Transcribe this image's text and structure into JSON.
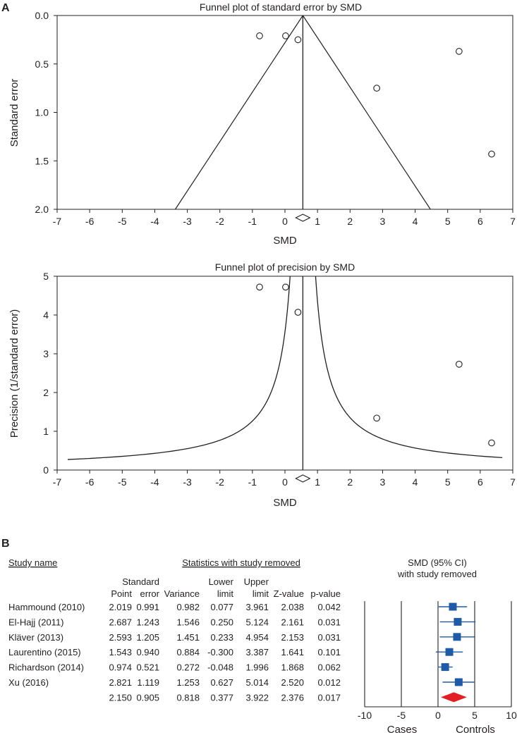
{
  "panel_a_label": "A",
  "panel_b_label": "B",
  "chart_data": [
    {
      "type": "scatter",
      "title": "Funnel plot of standard error by SMD",
      "xlabel": "SMD",
      "ylabel": "Standard error",
      "xlim": [
        -7,
        7
      ],
      "ylim": [
        0,
        2
      ],
      "y_reversed": true,
      "xticks": [
        -7,
        -6,
        -5,
        -4,
        -3,
        -2,
        -1,
        0,
        1,
        2,
        3,
        4,
        5,
        6,
        7
      ],
      "yticks": [
        0.0,
        0.5,
        1.0,
        1.5,
        2.0
      ],
      "ytick_labels": [
        "0.0",
        "0.5",
        "1.0",
        "1.5",
        "2.0"
      ],
      "pooled_estimate": 0.55,
      "points": [
        {
          "x": -0.78,
          "y": 0.21
        },
        {
          "x": 0.02,
          "y": 0.21
        },
        {
          "x": 0.4,
          "y": 0.25
        },
        {
          "x": 5.35,
          "y": 0.37
        },
        {
          "x": 2.82,
          "y": 0.75
        },
        {
          "x": 6.35,
          "y": 1.43
        }
      ]
    },
    {
      "type": "scatter",
      "title": "Funnel plot of precision by SMD",
      "xlabel": "SMD",
      "ylabel": "Precision (1/standard error)",
      "xlim": [
        -7,
        7
      ],
      "ylim": [
        0,
        5
      ],
      "xticks": [
        -7,
        -6,
        -5,
        -4,
        -3,
        -2,
        -1,
        0,
        1,
        2,
        3,
        4,
        5,
        6,
        7
      ],
      "yticks": [
        0,
        1,
        2,
        3,
        4,
        5
      ],
      "pooled_estimate": 0.55,
      "points": [
        {
          "x": -0.78,
          "y": 4.72
        },
        {
          "x": 0.02,
          "y": 4.72
        },
        {
          "x": 0.4,
          "y": 4.07
        },
        {
          "x": 5.35,
          "y": 2.73
        },
        {
          "x": 2.82,
          "y": 1.34
        },
        {
          "x": 6.35,
          "y": 0.7
        }
      ]
    },
    {
      "type": "table",
      "header_study": "Study name",
      "header_stats": "Statistics with study removed",
      "header_ci_line1": "SMD (95% CI)",
      "header_ci_line2": "with study removed",
      "columns": [
        {
          "line1": "",
          "line2": "Point"
        },
        {
          "line1": "Standard",
          "line2": "error"
        },
        {
          "line1": "",
          "line2": "Variance"
        },
        {
          "line1": "Lower",
          "line2": "limit"
        },
        {
          "line1": "Upper",
          "line2": "limit"
        },
        {
          "line1": "",
          "line2": "Z-value"
        },
        {
          "line1": "",
          "line2": "p-value"
        }
      ],
      "rows": [
        {
          "study": "Hammound (2010)",
          "cells": [
            "2.019",
            "0.991",
            "0.982",
            "0.077",
            "3.961",
            "2.038",
            "0.042"
          ],
          "point": 2.019,
          "lower": 0.077,
          "upper": 3.961
        },
        {
          "study": "El-Hajj (2011)",
          "cells": [
            "2.687",
            "1.243",
            "1.546",
            "0.250",
            "5.124",
            "2.161",
            "0.031"
          ],
          "point": 2.687,
          "lower": 0.25,
          "upper": 5.124
        },
        {
          "study": "Kläver (2013)",
          "cells": [
            "2.593",
            "1.205",
            "1.451",
            "0.233",
            "4.954",
            "2.153",
            "0.031"
          ],
          "point": 2.593,
          "lower": 0.233,
          "upper": 4.954
        },
        {
          "study": "Laurentino (2015)",
          "cells": [
            "1.543",
            "0.940",
            "0.884",
            "-0.300",
            "3.387",
            "1.641",
            "0.101"
          ],
          "point": 1.543,
          "lower": -0.3,
          "upper": 3.387
        },
        {
          "study": "Richardson (2014)",
          "cells": [
            "0.974",
            "0.521",
            "0.272",
            "-0.048",
            "1.996",
            "1.868",
            "0.062"
          ],
          "point": 0.974,
          "lower": -0.048,
          "upper": 1.996
        },
        {
          "study": "Xu (2016)",
          "cells": [
            "2.821",
            "1.119",
            "1.253",
            "0.627",
            "5.014",
            "2.520",
            "0.012"
          ],
          "point": 2.821,
          "lower": 0.627,
          "upper": 5.014
        }
      ],
      "overall": {
        "study": "",
        "cells": [
          "2.150",
          "0.905",
          "0.818",
          "0.377",
          "3.922",
          "2.376",
          "0.017"
        ],
        "point": 2.15,
        "lower": 0.377,
        "upper": 3.922
      },
      "forest_xlim": [
        -10,
        10
      ],
      "forest_xticks": [
        -10,
        -5,
        0,
        5,
        10
      ],
      "forest_xtick_labels": [
        "-10",
        "-5",
        "0",
        "5",
        "10"
      ],
      "forest_left_label": "Cases",
      "forest_right_label": "Controls"
    }
  ],
  "colors": {
    "ink": "#231f20",
    "square": "#1f5aa6",
    "ci_line": "#1f5aa6",
    "diamond": "#e31e24"
  }
}
